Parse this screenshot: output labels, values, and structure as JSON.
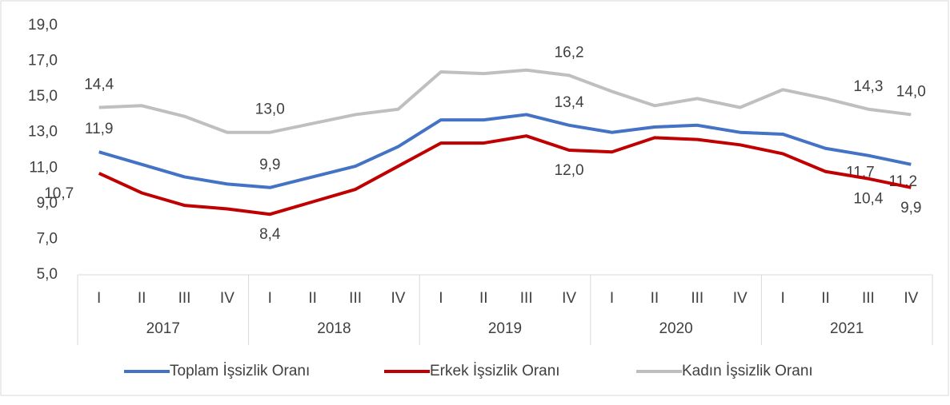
{
  "chart_data": {
    "type": "line",
    "categories": [
      "I",
      "II",
      "III",
      "IV",
      "I",
      "II",
      "III",
      "IV",
      "I",
      "II",
      "III",
      "IV",
      "I",
      "II",
      "III",
      "IV",
      "I",
      "II",
      "III",
      "IV"
    ],
    "category_groups": [
      "2017",
      "2018",
      "2019",
      "2020",
      "2021"
    ],
    "series": [
      {
        "name": "Toplam İşsizlik Oranı",
        "color": "#4472c4",
        "values": [
          11.9,
          11.2,
          10.5,
          10.1,
          9.9,
          10.5,
          11.1,
          12.2,
          13.7,
          13.7,
          14.0,
          13.4,
          13.0,
          13.3,
          13.4,
          13.0,
          12.9,
          12.1,
          11.7,
          11.2
        ],
        "value_labels": [
          "11,9",
          null,
          null,
          null,
          "9,9",
          null,
          null,
          null,
          null,
          null,
          null,
          "13,4",
          null,
          null,
          null,
          null,
          null,
          null,
          "11,7",
          "11,2"
        ]
      },
      {
        "name": "Erkek İşsizlik Oranı",
        "color": "#c00000",
        "values": [
          10.7,
          9.6,
          8.9,
          8.7,
          8.4,
          9.1,
          9.8,
          11.1,
          12.4,
          12.4,
          12.8,
          12.0,
          11.9,
          12.7,
          12.6,
          12.3,
          11.8,
          10.8,
          10.4,
          9.9
        ],
        "value_labels": [
          "10,7",
          null,
          null,
          null,
          "8,4",
          null,
          null,
          null,
          null,
          null,
          null,
          "12,0",
          null,
          null,
          null,
          null,
          null,
          null,
          "10,4",
          "9,9"
        ]
      },
      {
        "name": "Kadın İşsizlik Oranı",
        "color": "#bfbfbf",
        "values": [
          14.4,
          14.5,
          13.9,
          13.0,
          13.0,
          13.5,
          14.0,
          14.3,
          16.4,
          16.3,
          16.5,
          16.2,
          15.3,
          14.5,
          14.9,
          14.4,
          15.4,
          14.9,
          14.3,
          14.0
        ],
        "value_labels": [
          "14,4",
          null,
          null,
          null,
          "13,0",
          null,
          null,
          null,
          null,
          null,
          null,
          "16,2",
          null,
          null,
          null,
          null,
          null,
          null,
          "14,3",
          "14,0"
        ]
      }
    ],
    "ylim": [
      5,
      19
    ],
    "yticks": [
      {
        "value": 5,
        "label": "5,0"
      },
      {
        "value": 7,
        "label": "7,0"
      },
      {
        "value": 9,
        "label": "9,0"
      },
      {
        "value": 11,
        "label": "11,0"
      },
      {
        "value": 13,
        "label": "13,0"
      },
      {
        "value": 15,
        "label": "15,0"
      },
      {
        "value": 17,
        "label": "17,0"
      },
      {
        "value": 19,
        "label": "19,0"
      }
    ],
    "grid": false,
    "legend": "bottom"
  }
}
